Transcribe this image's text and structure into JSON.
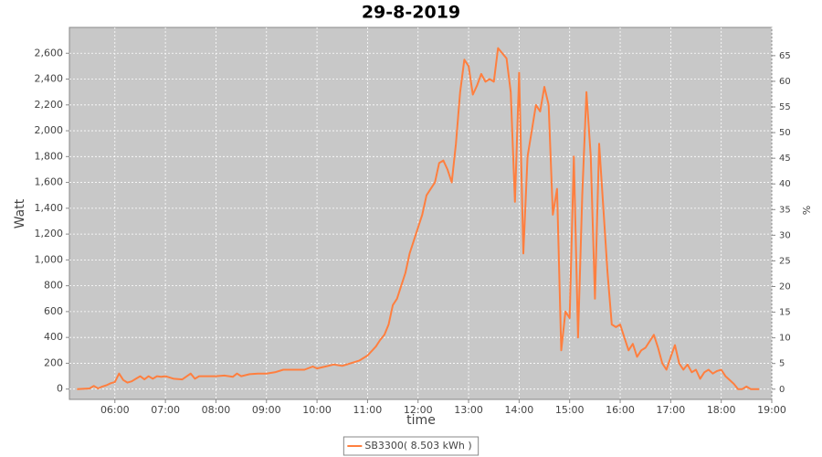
{
  "chart_data": {
    "type": "line",
    "title": "29-8-2019",
    "x_label": "time",
    "y_label": "Watt",
    "y2_label": "%",
    "x": [
      315,
      330,
      335,
      340,
      345,
      350,
      355,
      360,
      365,
      370,
      375,
      380,
      385,
      390,
      395,
      400,
      405,
      410,
      415,
      420,
      430,
      440,
      450,
      455,
      460,
      470,
      480,
      490,
      500,
      505,
      510,
      520,
      530,
      540,
      550,
      560,
      570,
      585,
      595,
      600,
      610,
      620,
      630,
      640,
      650,
      660,
      670,
      675,
      680,
      685,
      690,
      695,
      700,
      705,
      710,
      715,
      720,
      725,
      730,
      735,
      740,
      745,
      750,
      755,
      760,
      765,
      770,
      775,
      780,
      785,
      790,
      795,
      800,
      805,
      810,
      815,
      820,
      825,
      830,
      835,
      840,
      845,
      850,
      855,
      860,
      865,
      870,
      875,
      880,
      885,
      890,
      895,
      900,
      905,
      910,
      915,
      920,
      925,
      930,
      935,
      940,
      945,
      950,
      955,
      960,
      965,
      970,
      975,
      980,
      985,
      990,
      995,
      1000,
      1005,
      1010,
      1015,
      1020,
      1025,
      1030,
      1035,
      1040,
      1045,
      1050,
      1055,
      1060,
      1065,
      1070,
      1075,
      1080,
      1085,
      1090,
      1095,
      1100,
      1105,
      1110,
      1115,
      1125
    ],
    "series": [
      {
        "name": "SB3300( 8.503 kWh )",
        "color": "#ff7f3f",
        "values": [
          0,
          5,
          25,
          5,
          20,
          30,
          45,
          55,
          120,
          70,
          50,
          60,
          80,
          100,
          75,
          100,
          80,
          100,
          95,
          100,
          80,
          75,
          120,
          80,
          100,
          100,
          100,
          105,
          95,
          120,
          100,
          115,
          120,
          120,
          130,
          150,
          150,
          150,
          175,
          160,
          175,
          190,
          180,
          200,
          220,
          260,
          330,
          380,
          420,
          500,
          650,
          700,
          800,
          900,
          1050,
          1150,
          1250,
          1350,
          1500,
          1550,
          1600,
          1750,
          1770,
          1700,
          1600,
          1900,
          2300,
          2550,
          2500,
          2280,
          2350,
          2440,
          2380,
          2400,
          2380,
          2640,
          2600,
          2560,
          2300,
          1450,
          2450,
          1050,
          1800,
          2000,
          2200,
          2150,
          2340,
          2200,
          1350,
          1550,
          300,
          600,
          550,
          1800,
          400,
          1500,
          2300,
          1800,
          700,
          1900,
          1400,
          900,
          500,
          480,
          500,
          400,
          300,
          350,
          250,
          300,
          320,
          370,
          420,
          320,
          200,
          150,
          250,
          340,
          200,
          150,
          190,
          130,
          150,
          80,
          130,
          150,
          120,
          140,
          150,
          100,
          70,
          40,
          0,
          0,
          20,
          0,
          0
        ]
      }
    ],
    "xlim": [
      306,
      1140
    ],
    "xticks": [
      {
        "value": 360,
        "label": "06:00"
      },
      {
        "value": 420,
        "label": "07:00"
      },
      {
        "value": 480,
        "label": "08:00"
      },
      {
        "value": 540,
        "label": "09:00"
      },
      {
        "value": 600,
        "label": "10:00"
      },
      {
        "value": 660,
        "label": "11:00"
      },
      {
        "value": 720,
        "label": "12:00"
      },
      {
        "value": 780,
        "label": "13:00"
      },
      {
        "value": 840,
        "label": "14:00"
      },
      {
        "value": 900,
        "label": "15:00"
      },
      {
        "value": 960,
        "label": "16:00"
      },
      {
        "value": 1020,
        "label": "17:00"
      },
      {
        "value": 1080,
        "label": "18:00"
      },
      {
        "value": 1140,
        "label": "19:00"
      }
    ],
    "ylim": [
      -80,
      2800
    ],
    "yticks": [
      0,
      200,
      400,
      600,
      800,
      {
        "value": 1000,
        "label": "1,000"
      },
      {
        "value": 1200,
        "label": "1,200"
      },
      {
        "value": 1400,
        "label": "1,400"
      },
      {
        "value": 1600,
        "label": "1,600"
      },
      {
        "value": 1800,
        "label": "1,800"
      },
      {
        "value": 2000,
        "label": "2,000"
      },
      {
        "value": 2200,
        "label": "2,200"
      },
      {
        "value": 2400,
        "label": "2,400"
      },
      {
        "value": 2600,
        "label": "2,600"
      }
    ],
    "y2lim": [
      -2,
      70.5
    ],
    "y2ticks": [
      0,
      5,
      10,
      15,
      20,
      25,
      30,
      35,
      40,
      45,
      50,
      55,
      60,
      65
    ],
    "grid": true,
    "legend": "bottom"
  }
}
